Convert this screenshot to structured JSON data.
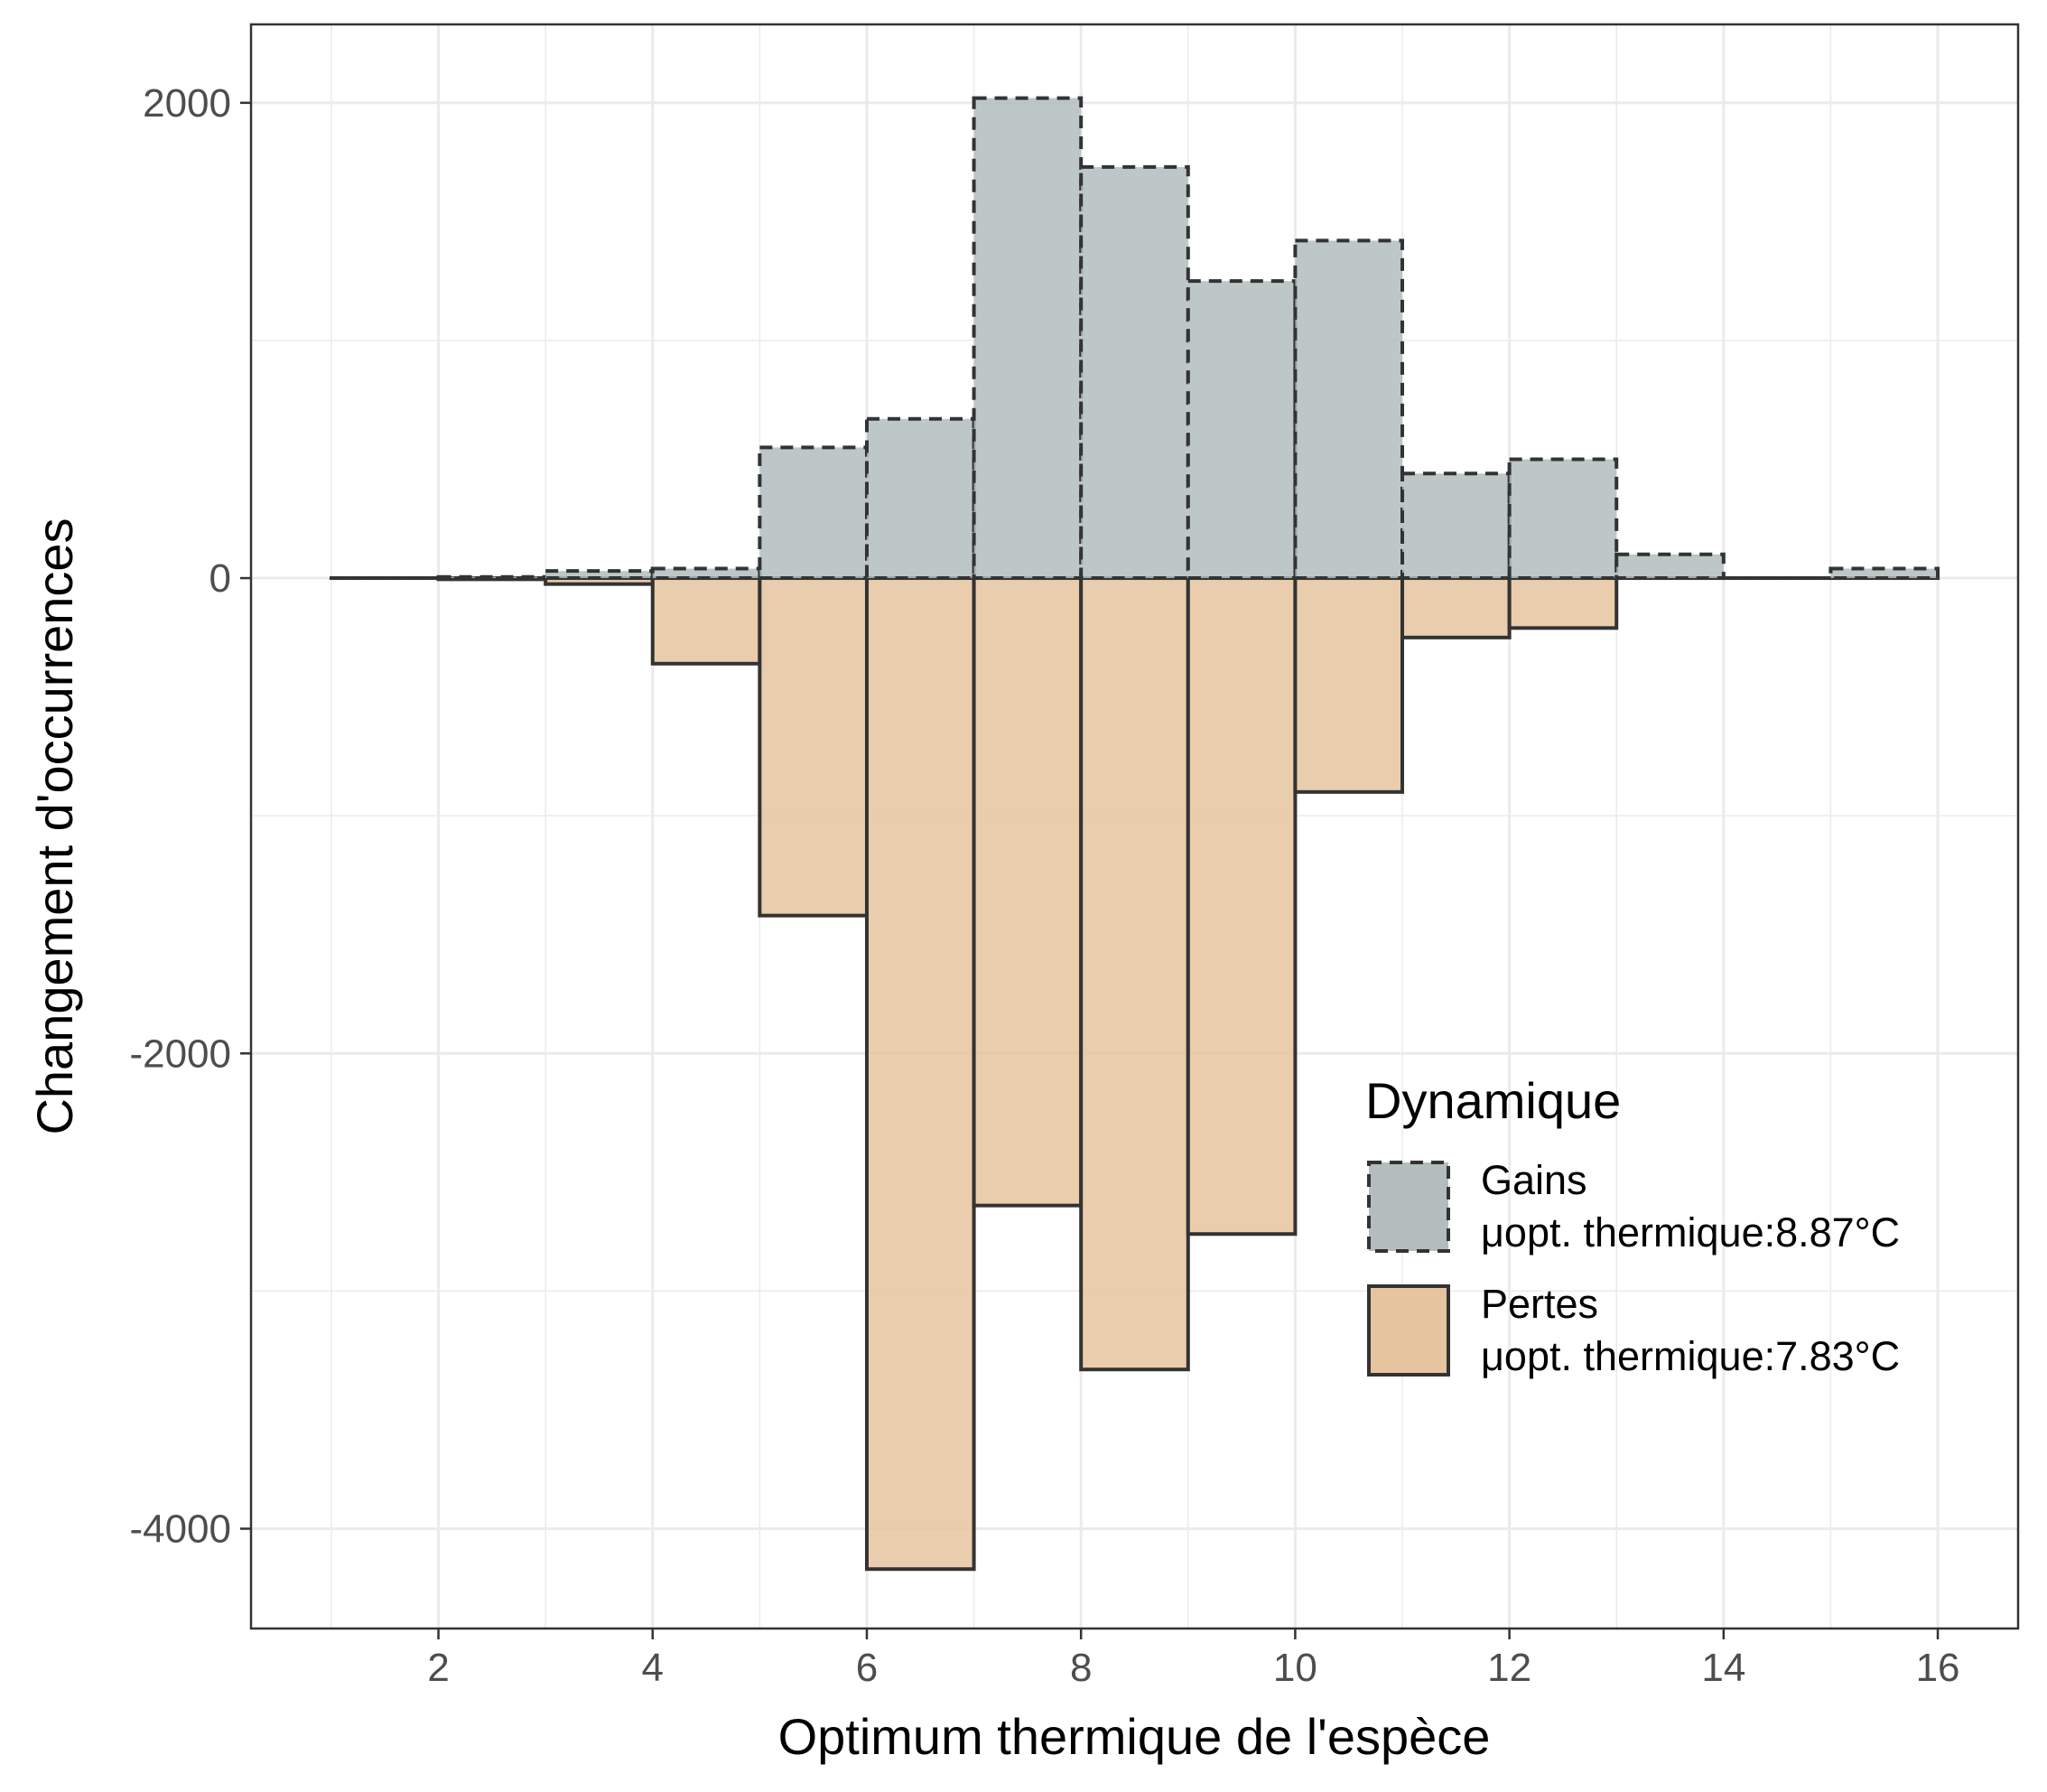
{
  "chart_data": {
    "type": "bar",
    "xlabel": "Optimum thermique de l'espèce",
    "ylabel": "Changement d'occurrences",
    "xlim": [
      0.25,
      16.75
    ],
    "ylim": [
      -4420,
      2330
    ],
    "x_ticks": [
      2,
      4,
      6,
      8,
      10,
      12,
      14,
      16
    ],
    "y_ticks": [
      -4000,
      -2000,
      0,
      2000
    ],
    "grid": true,
    "bin_width": 1,
    "bin_starts": [
      1,
      2,
      3,
      4,
      5,
      6,
      7,
      8,
      9,
      10,
      11,
      12,
      13,
      14,
      15
    ],
    "series": [
      {
        "name": "Gains",
        "values": [
          0,
          5,
          30,
          40,
          550,
          670,
          2020,
          1730,
          1250,
          1420,
          440,
          500,
          100,
          0,
          40
        ],
        "fill": "#b3bdbd",
        "stroke": "#333333",
        "dashed": true
      },
      {
        "name": "Pertes",
        "values": [
          0,
          -5,
          -25,
          -360,
          -1420,
          -4170,
          -2640,
          -3330,
          -2760,
          -900,
          -250,
          -210,
          0,
          0,
          0
        ],
        "fill": "#e5c49f",
        "stroke": "#333333",
        "dashed": false
      }
    ],
    "legend": {
      "title": "Dynamique",
      "position": "bottom-right",
      "entries": [
        {
          "line1": "Gains",
          "line2": "μopt. thermique:8.87°C"
        },
        {
          "line1": "Pertes",
          "line2": "μopt. thermique:7.83°C"
        }
      ]
    }
  }
}
